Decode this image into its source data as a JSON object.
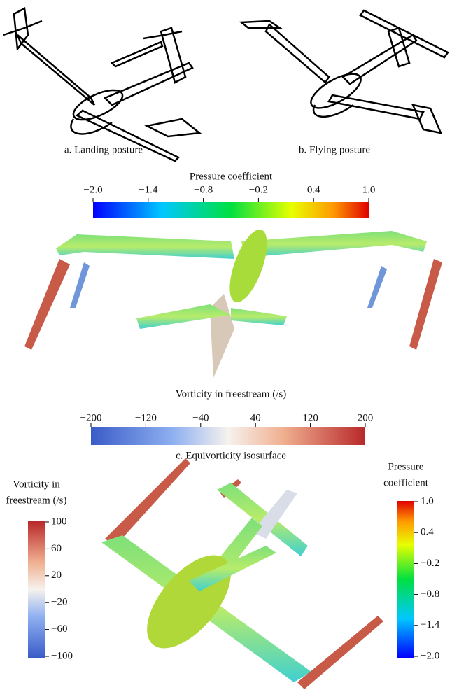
{
  "panels": {
    "a": {
      "caption": "a. Landing posture"
    },
    "b": {
      "caption": "b. Flying posture"
    },
    "c": {
      "pressure_colorbar": {
        "title": "Pressure coefficient",
        "ticks": [
          "−2.0",
          "−1.4",
          "−0.8",
          "−0.2",
          "0.4",
          "1.0"
        ]
      },
      "vorticity_colorbar": {
        "title": "Vorticity in freestream (/s)",
        "ticks": [
          "−200",
          "−120",
          "−40",
          "40",
          "120",
          "200"
        ]
      },
      "caption": "c. Equivorticity isosurface"
    },
    "d": {
      "vorticity_colorbar": {
        "title_lines": [
          "Vorticity in",
          "freestream (/s)"
        ],
        "ticks": [
          "100",
          "60",
          "20",
          "−20",
          "−60",
          "−100"
        ]
      },
      "pressure_colorbar": {
        "title_lines": [
          "Pressure",
          "coefficient"
        ],
        "ticks": [
          "1.0",
          "0.4",
          "−0.2",
          "−0.8",
          "−1.4",
          "−2.0"
        ]
      }
    }
  }
}
